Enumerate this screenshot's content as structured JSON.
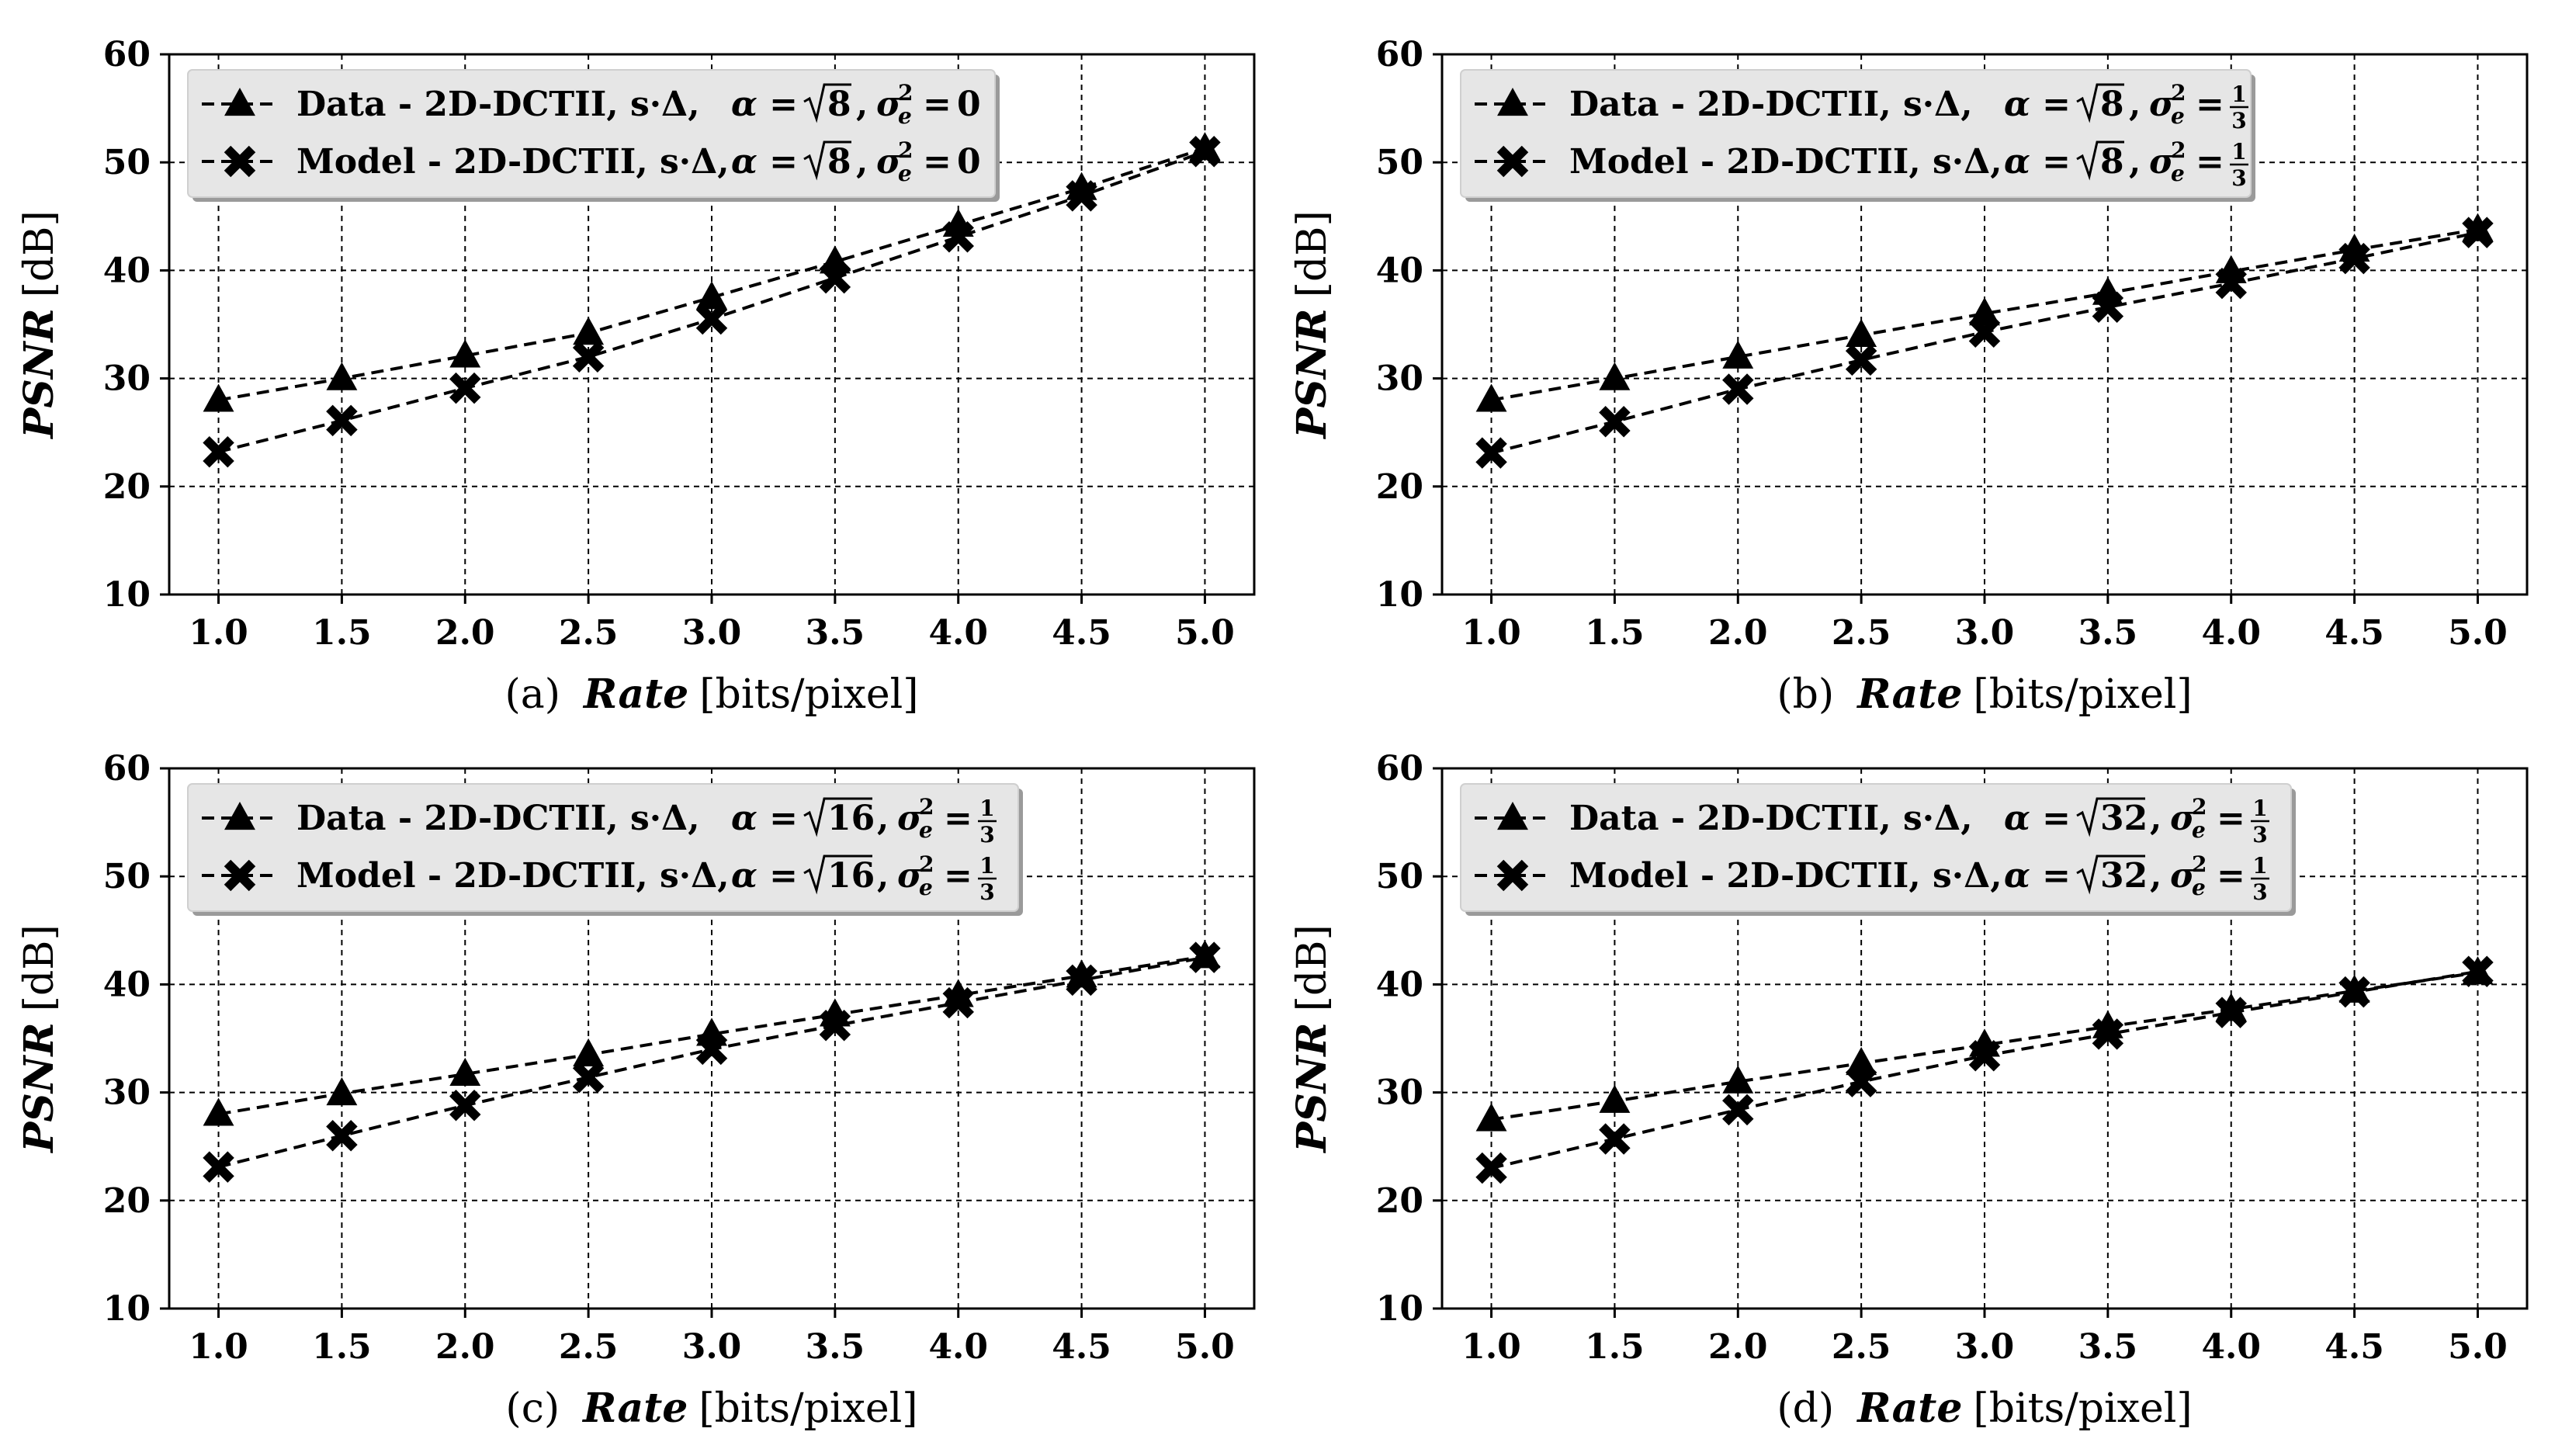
{
  "figure": {
    "legend_labels": {
      "data_prefix": "Data   - 2D-DCTII, s·Δ,",
      "model_prefix": "Model - 2D-DCTII, s·Δ,",
      "alpha_symbol": "α =",
      "sigma_symbol": "σ",
      "sigma_sub": "e",
      "sigma_sup": "2",
      "sigma_eq": "="
    }
  },
  "chart_data": [
    {
      "type": "line",
      "panel_tag": "(a)",
      "xlabel_italic": "Rate",
      "xlabel_rest": "[bits/pixel]",
      "ylabel_italic": "PSNR",
      "ylabel_rest": "[dB]",
      "x": [
        1.0,
        1.5,
        2.0,
        2.5,
        3.0,
        3.5,
        4.0,
        4.5,
        5.0
      ],
      "x_tick_labels": [
        "1.0",
        "1.5",
        "2.0",
        "2.5",
        "3.0",
        "3.5",
        "4.0",
        "4.5",
        "5.0"
      ],
      "y_ticks": [
        10,
        20,
        30,
        40,
        50,
        60
      ],
      "y_tick_labels": [
        "10",
        "20",
        "30",
        "40",
        "50",
        "60"
      ],
      "xlim": [
        0.8,
        5.2
      ],
      "ylim": [
        10,
        60
      ],
      "grid": true,
      "legend_position": "top-left",
      "alpha_value": "8",
      "sigma_value": "0",
      "sigma_is_fraction": false,
      "series": [
        {
          "name": "Data",
          "marker": "triangle",
          "values": [
            28.0,
            30.0,
            32.1,
            34.2,
            37.5,
            40.8,
            44.2,
            47.6,
            51.3
          ]
        },
        {
          "name": "Model",
          "marker": "x",
          "values": [
            23.2,
            26.1,
            29.1,
            32.0,
            35.5,
            39.3,
            43.1,
            46.9,
            51.0
          ]
        }
      ]
    },
    {
      "type": "line",
      "panel_tag": "(b)",
      "xlabel_italic": "Rate",
      "xlabel_rest": "[bits/pixel]",
      "ylabel_italic": "PSNR",
      "ylabel_rest": "[dB]",
      "x": [
        1.0,
        1.5,
        2.0,
        2.5,
        3.0,
        3.5,
        4.0,
        4.5,
        5.0
      ],
      "x_tick_labels": [
        "1.0",
        "1.5",
        "2.0",
        "2.5",
        "3.0",
        "3.5",
        "4.0",
        "4.5",
        "5.0"
      ],
      "y_ticks": [
        10,
        20,
        30,
        40,
        50,
        60
      ],
      "y_tick_labels": [
        "10",
        "20",
        "30",
        "40",
        "50",
        "60"
      ],
      "xlim": [
        0.8,
        5.2
      ],
      "ylim": [
        10,
        60
      ],
      "grid": true,
      "legend_position": "top-left",
      "alpha_value": "8",
      "sigma_value": "1/3",
      "sigma_is_fraction": true,
      "series": [
        {
          "name": "Data",
          "marker": "triangle",
          "values": [
            28.0,
            30.0,
            32.0,
            34.0,
            36.0,
            37.9,
            39.9,
            41.9,
            43.8
          ]
        },
        {
          "name": "Model",
          "marker": "x",
          "values": [
            23.1,
            26.0,
            29.0,
            31.7,
            34.3,
            36.6,
            38.8,
            41.1,
            43.5
          ]
        }
      ]
    },
    {
      "type": "line",
      "panel_tag": "(c)",
      "xlabel_italic": "Rate",
      "xlabel_rest": "[bits/pixel]",
      "ylabel_italic": "PSNR",
      "ylabel_rest": "[dB]",
      "x": [
        1.0,
        1.5,
        2.0,
        2.5,
        3.0,
        3.5,
        4.0,
        4.5,
        5.0
      ],
      "x_tick_labels": [
        "1.0",
        "1.5",
        "2.0",
        "2.5",
        "3.0",
        "3.5",
        "4.0",
        "4.5",
        "5.0"
      ],
      "y_ticks": [
        10,
        20,
        30,
        40,
        50,
        60
      ],
      "y_tick_labels": [
        "10",
        "20",
        "30",
        "40",
        "50",
        "60"
      ],
      "xlim": [
        0.8,
        5.2
      ],
      "ylim": [
        10,
        60
      ],
      "grid": true,
      "legend_position": "top-left",
      "alpha_value": "16",
      "sigma_value": "1/3",
      "sigma_is_fraction": true,
      "series": [
        {
          "name": "Data",
          "marker": "triangle",
          "values": [
            28.0,
            29.9,
            31.7,
            33.5,
            35.4,
            37.2,
            39.0,
            40.8,
            42.6
          ]
        },
        {
          "name": "Model",
          "marker": "x",
          "values": [
            23.1,
            26.0,
            28.8,
            31.4,
            34.0,
            36.2,
            38.3,
            40.4,
            42.5
          ]
        }
      ]
    },
    {
      "type": "line",
      "panel_tag": "(d)",
      "xlabel_italic": "Rate",
      "xlabel_rest": "[bits/pixel]",
      "ylabel_italic": "PSNR",
      "ylabel_rest": "[dB]",
      "x": [
        1.0,
        1.5,
        2.0,
        2.5,
        3.0,
        3.5,
        4.0,
        4.5,
        5.0
      ],
      "x_tick_labels": [
        "1.0",
        "1.5",
        "2.0",
        "2.5",
        "3.0",
        "3.5",
        "4.0",
        "4.5",
        "5.0"
      ],
      "y_ticks": [
        10,
        20,
        30,
        40,
        50,
        60
      ],
      "y_tick_labels": [
        "10",
        "20",
        "30",
        "40",
        "50",
        "60"
      ],
      "xlim": [
        0.8,
        5.2
      ],
      "ylim": [
        10,
        60
      ],
      "grid": true,
      "legend_position": "top-left",
      "alpha_value": "32",
      "sigma_value": "1/3",
      "sigma_is_fraction": true,
      "series": [
        {
          "name": "Data",
          "marker": "triangle",
          "values": [
            27.5,
            29.2,
            31.0,
            32.7,
            34.4,
            36.1,
            37.7,
            39.4,
            41.1
          ]
        },
        {
          "name": "Model",
          "marker": "x",
          "values": [
            23.0,
            25.7,
            28.4,
            31.0,
            33.4,
            35.4,
            37.4,
            39.3,
            41.2
          ]
        }
      ]
    }
  ]
}
